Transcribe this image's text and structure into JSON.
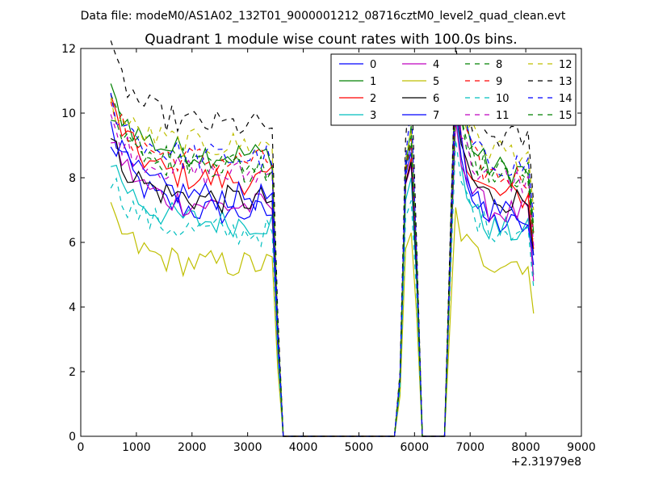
{
  "figure": {
    "suptitle": "Data file: modeM0/AS1A02_132T01_9000001212_08716cztM0_level2_quad_clean.evt"
  },
  "chart_data": {
    "type": "line",
    "title": "Quadrant 1 module wise count rates with 100.0s bins.",
    "xlabel": "",
    "ylabel": "",
    "xlim": [
      0,
      9000
    ],
    "ylim": [
      0,
      12
    ],
    "x_offset_label": "+2.31979e8",
    "xticks": [
      0,
      1000,
      2000,
      3000,
      4000,
      5000,
      6000,
      7000,
      8000,
      9000
    ],
    "xtick_labels": [
      "0",
      "1000",
      "2000",
      "3000",
      "4000",
      "5000",
      "6000",
      "7000",
      "8000",
      "9000"
    ],
    "yticks": [
      0,
      2,
      4,
      6,
      8,
      10,
      12
    ],
    "ytick_labels": [
      "0",
      "2",
      "4",
      "6",
      "8",
      "10",
      "12"
    ],
    "grid": false,
    "legend": "top-right",
    "segments": {
      "seg1_x_start": 540,
      "seg1_x_end": 3440,
      "seg2_x": [
        5740,
        5840,
        5940,
        6040
      ],
      "seg3_x_start": 6740,
      "seg3_x_end": 8140
    },
    "series": [
      {
        "name": "0",
        "color": "#0000ff",
        "dash": false,
        "base1": 6.9,
        "start1": 9.6,
        "base2": 7.9,
        "peak2": 8.8,
        "base3": 6.5,
        "start3": 10.5,
        "end3": 5.3
      },
      {
        "name": "1",
        "color": "#008000",
        "dash": false,
        "base1": 8.7,
        "start1": 10.6,
        "base2": 8.3,
        "peak2": 9.6,
        "base3": 8.2,
        "start3": 11.8,
        "end3": 6.3
      },
      {
        "name": "2",
        "color": "#ff0000",
        "dash": false,
        "base1": 7.9,
        "start1": 10.3,
        "base2": 7.8,
        "peak2": 8.6,
        "base3": 7.4,
        "start3": 10.8,
        "end3": 5.8
      },
      {
        "name": "3",
        "color": "#00bfbf",
        "dash": false,
        "base1": 6.6,
        "start1": 8.6,
        "base2": 7.2,
        "peak2": 8.0,
        "base3": 6.3,
        "start3": 9.9,
        "end3": 5.0
      },
      {
        "name": "4",
        "color": "#bf00bf",
        "dash": false,
        "base1": 7.1,
        "start1": 9.3,
        "base2": 7.6,
        "peak2": 8.4,
        "base3": 6.9,
        "start3": 10.0,
        "end3": 4.8
      },
      {
        "name": "5",
        "color": "#bfbf00",
        "dash": false,
        "base1": 5.3,
        "start1": 6.8,
        "base2": 5.7,
        "peak2": 6.3,
        "base3": 5.4,
        "start3": 6.9,
        "end3": 3.8
      },
      {
        "name": "6",
        "color": "#000000",
        "dash": false,
        "base1": 7.3,
        "start1": 9.1,
        "base2": 7.6,
        "peak2": 8.5,
        "base3": 7.3,
        "start3": 10.2,
        "end3": 5.6
      },
      {
        "name": "7",
        "color": "#0000ff",
        "dash": false,
        "base1": 7.4,
        "start1": 9.4,
        "base2": 8.1,
        "peak2": 9.0,
        "base3": 6.9,
        "start3": 10.4,
        "end3": 5.6
      },
      {
        "name": "8",
        "color": "#008000",
        "dash": true,
        "base1": 8.4,
        "start1": 10.5,
        "base2": 8.4,
        "peak2": 9.3,
        "base3": 8.1,
        "start3": 11.1,
        "end3": 6.5
      },
      {
        "name": "9",
        "color": "#ff0000",
        "dash": true,
        "base1": 8.5,
        "start1": 10.1,
        "base2": 8.3,
        "peak2": 9.2,
        "base3": 8.0,
        "start3": 11.0,
        "end3": 6.3
      },
      {
        "name": "10",
        "color": "#00bfbf",
        "dash": true,
        "base1": 6.3,
        "start1": 8.0,
        "base2": 6.6,
        "peak2": 7.3,
        "base3": 6.4,
        "start3": 8.9,
        "end3": 4.6
      },
      {
        "name": "11",
        "color": "#bf00bf",
        "dash": true,
        "base1": 8.1,
        "start1": 9.7,
        "base2": 8.3,
        "peak2": 9.0,
        "base3": 7.9,
        "start3": 10.4,
        "end3": 5.9
      },
      {
        "name": "12",
        "color": "#bfbf00",
        "dash": true,
        "base1": 9.0,
        "start1": 10.2,
        "base2": 8.6,
        "peak2": 9.5,
        "base3": 8.8,
        "start3": 11.2,
        "end3": 7.0
      },
      {
        "name": "13",
        "color": "#000000",
        "dash": true,
        "base1": 9.6,
        "start1": 11.8,
        "base2": 9.0,
        "peak2": 11.3,
        "base3": 9.2,
        "start3": 11.7,
        "end3": 7.2
      },
      {
        "name": "14",
        "color": "#0000ff",
        "dash": true,
        "base1": 8.6,
        "start1": 10.4,
        "base2": 8.4,
        "peak2": 10.3,
        "base3": 8.4,
        "start3": 11.0,
        "end3": 6.7
      },
      {
        "name": "15",
        "color": "#008000",
        "dash": true,
        "base1": 8.3,
        "start1": 9.9,
        "base2": 8.3,
        "peak2": 9.1,
        "base3": 8.1,
        "start3": 10.6,
        "end3": 6.1
      }
    ]
  }
}
